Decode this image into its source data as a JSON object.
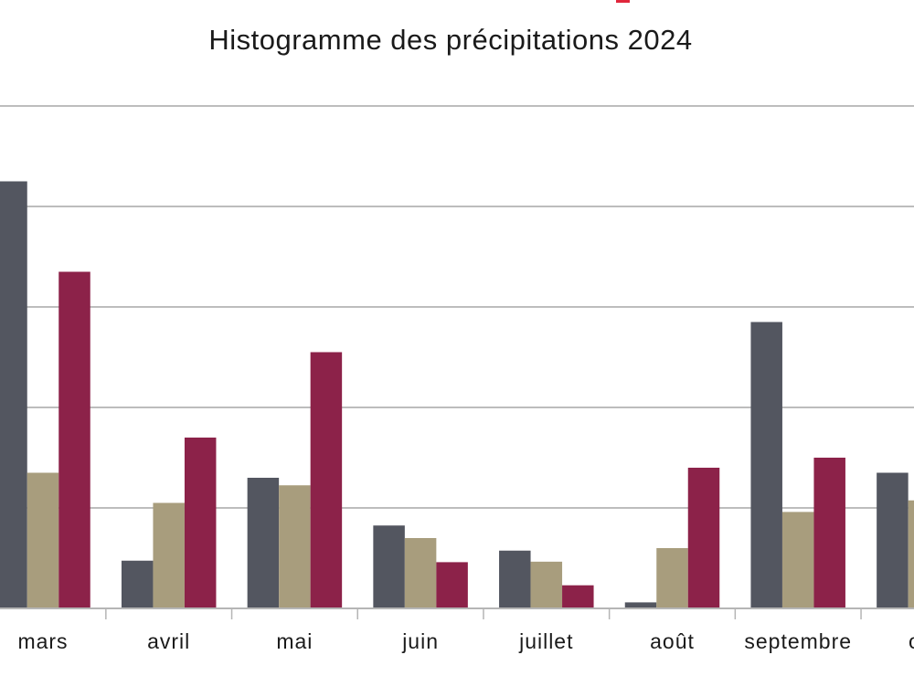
{
  "chart_data": {
    "type": "bar",
    "title": "Histogramme des précipitations 2024",
    "xlabel": "",
    "ylabel": "",
    "categories": [
      "mars",
      "avril",
      "mai",
      "juin",
      "juillet",
      "août",
      "septembre",
      "oct"
    ],
    "series": [
      {
        "values": [
          85,
          9.5,
          26,
          16.5,
          11.5,
          1.2,
          57,
          27
        ]
      },
      {
        "values": [
          27,
          21,
          24.5,
          14,
          9.3,
          12,
          19.2,
          21.5
        ]
      },
      {
        "values": [
          67,
          34,
          51,
          9.2,
          4.6,
          28,
          30,
          0
        ]
      }
    ],
    "colors": [
      "#535660",
      "#a89d7d",
      "#8c2249"
    ],
    "ylim": [
      0,
      100
    ],
    "ytick_step": 20,
    "grid": true,
    "legend": "none"
  }
}
